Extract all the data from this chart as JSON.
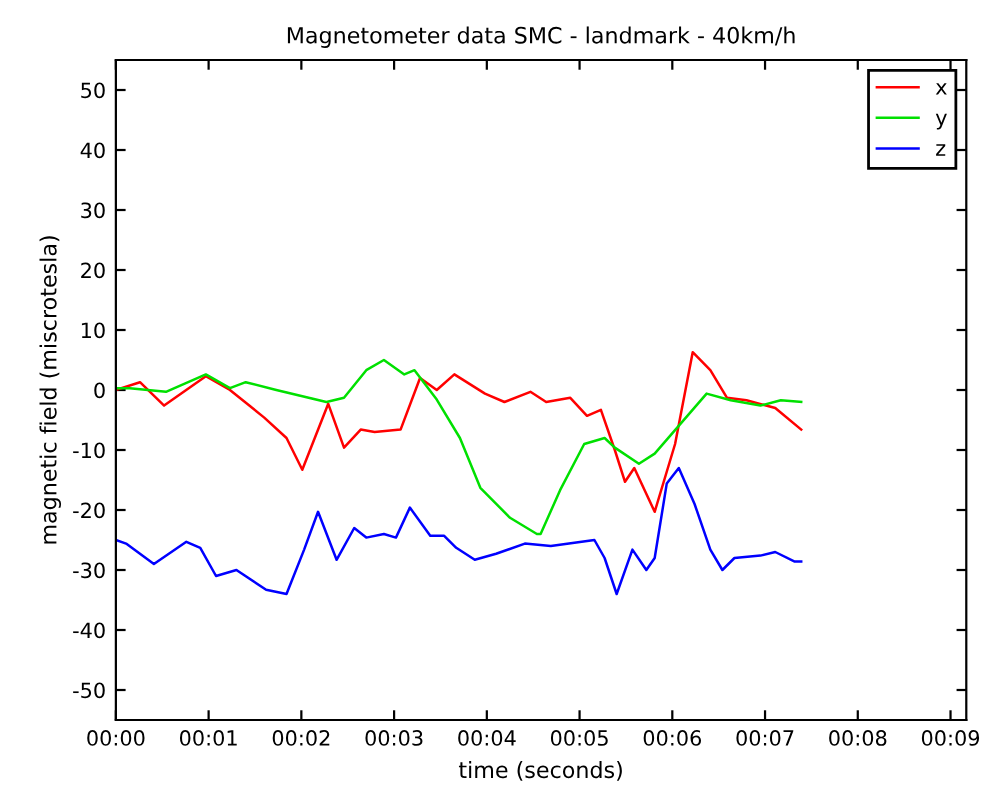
{
  "chart_data": {
    "type": "line",
    "title": "Magnetometer data SMC - landmark - 40km/h",
    "xlabel": "time (seconds)",
    "ylabel": "magnetic field (miscrotesla)",
    "xlim": [
      0,
      9.17
    ],
    "ylim": [
      -55,
      55
    ],
    "xticks": [
      {
        "value": 0,
        "label": "00:00"
      },
      {
        "value": 1,
        "label": "00:01"
      },
      {
        "value": 2,
        "label": "00:02"
      },
      {
        "value": 3,
        "label": "00:03"
      },
      {
        "value": 4,
        "label": "00:04"
      },
      {
        "value": 5,
        "label": "00:05"
      },
      {
        "value": 6,
        "label": "00:06"
      },
      {
        "value": 7,
        "label": "00:07"
      },
      {
        "value": 8,
        "label": "00:08"
      },
      {
        "value": 9,
        "label": "00:09"
      }
    ],
    "yticks": [
      -50,
      -40,
      -30,
      -20,
      -10,
      0,
      10,
      20,
      30,
      40,
      50
    ],
    "grid": false,
    "legend": "top right",
    "marker": "none",
    "line_style": "solid",
    "series": [
      {
        "name": "x",
        "color": "#ff0000",
        "x": [
          0,
          0.26,
          0.52,
          0.97,
          1.23,
          1.6,
          1.84,
          2.01,
          2.29,
          2.46,
          2.64,
          2.79,
          3.07,
          3.28,
          3.46,
          3.65,
          3.98,
          4.19,
          4.47,
          4.64,
          4.9,
          5.08,
          5.23,
          5.38,
          5.49,
          5.59,
          5.81,
          6.03,
          6.22,
          6.41,
          6.59,
          6.8,
          7.11,
          7.39
        ],
        "values": [
          0,
          1.3,
          -2.6,
          2.3,
          0,
          -4.6,
          -8,
          -13.3,
          -2.3,
          -9.6,
          -6.6,
          -7,
          -6.6,
          2,
          0,
          2.6,
          -0.6,
          -2,
          -0.3,
          -2,
          -1.3,
          -4.3,
          -3.3,
          -10,
          -15.3,
          -13,
          -20.3,
          -9,
          6.3,
          3.3,
          -1.3,
          -1.7,
          -3,
          -6.6
        ]
      },
      {
        "name": "y",
        "color": "#00e000",
        "x": [
          0,
          0.15,
          0.54,
          0.97,
          1.23,
          1.4,
          1.73,
          2.27,
          2.46,
          2.7,
          2.89,
          3.11,
          3.22,
          3.46,
          3.71,
          3.93,
          4.25,
          4.54,
          4.58,
          4.79,
          5.05,
          5.27,
          5.38,
          5.64,
          5.81,
          6.09,
          6.37,
          6.63,
          6.95,
          7.17,
          7.39
        ],
        "values": [
          0.3,
          0.3,
          -0.3,
          2.6,
          0.3,
          1.3,
          0,
          -2,
          -1.3,
          3.3,
          5,
          2.6,
          3.3,
          -1.6,
          -8,
          -16.3,
          -21.3,
          -24,
          -24,
          -16.7,
          -9,
          -8,
          -9.6,
          -12.3,
          -10.6,
          -5.6,
          -0.6,
          -1.7,
          -2.6,
          -1.7,
          -2
        ]
      },
      {
        "name": "z",
        "color": "#0000ff",
        "x": [
          0,
          0.11,
          0.41,
          0.76,
          0.91,
          1.08,
          1.3,
          1.62,
          1.84,
          2.03,
          2.18,
          2.38,
          2.57,
          2.7,
          2.89,
          3.02,
          3.17,
          3.39,
          3.54,
          3.67,
          3.87,
          4.1,
          4.41,
          4.69,
          5.16,
          5.27,
          5.4,
          5.57,
          5.72,
          5.81,
          5.94,
          6.07,
          6.24,
          6.41,
          6.54,
          6.67,
          6.95,
          7.11,
          7.32,
          7.39
        ],
        "values": [
          -25,
          -25.6,
          -29,
          -25.3,
          -26.3,
          -31,
          -30,
          -33.3,
          -34,
          -26.6,
          -20.3,
          -28.3,
          -23,
          -24.6,
          -24,
          -24.6,
          -19.6,
          -24.3,
          -24.3,
          -26.3,
          -28.3,
          -27.3,
          -25.6,
          -26,
          -25,
          -28,
          -34,
          -26.6,
          -30,
          -28,
          -15.6,
          -13,
          -19,
          -26.6,
          -30,
          -28,
          -27.6,
          -27,
          -28.6,
          -28.6
        ]
      }
    ]
  }
}
